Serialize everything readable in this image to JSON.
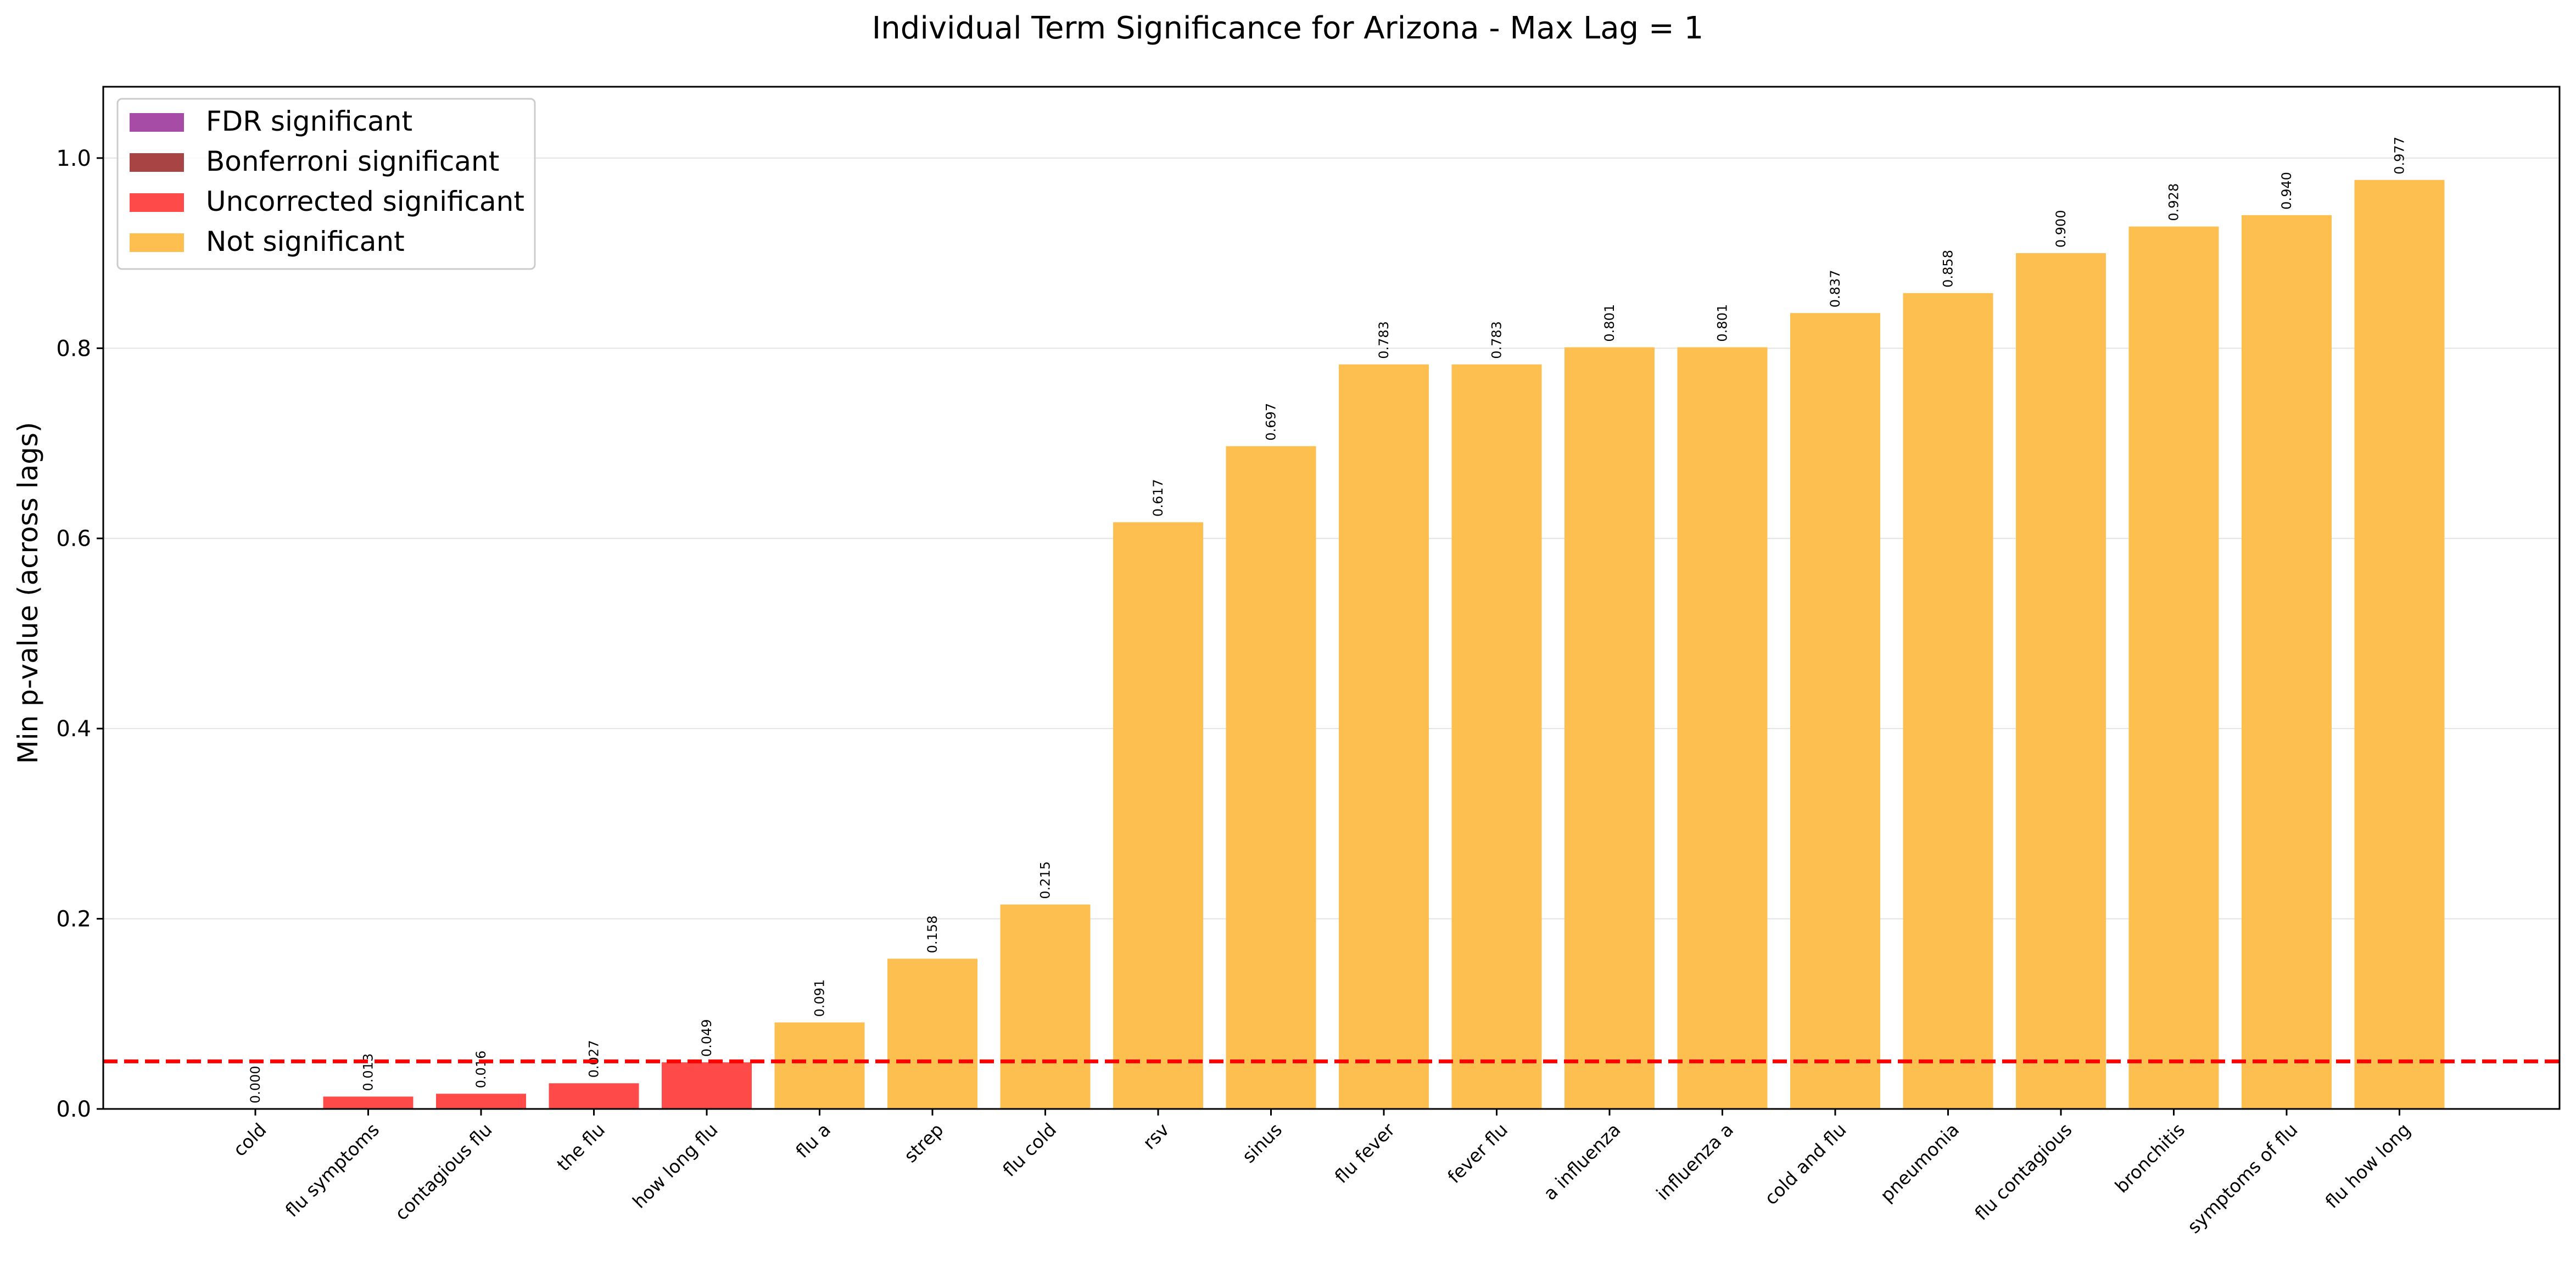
{
  "chart_data": {
    "type": "bar",
    "title": "Individual Term Significance for Arizona - Max Lag = 1",
    "xlabel": "",
    "ylabel": "Min p-value (across lags)",
    "ylim": [
      0,
      1.075
    ],
    "yticks": [
      "0.0",
      "0.2",
      "0.4",
      "0.6",
      "0.8",
      "1.0"
    ],
    "ytick_values": [
      0,
      0.2,
      0.4,
      0.6,
      0.8,
      1.0
    ],
    "grid": "y",
    "threshold": 0.05,
    "threshold_color": "#ff0000",
    "categories": [
      "cold",
      "flu symptoms",
      "contagious flu",
      "the flu",
      "how long flu",
      "flu a",
      "strep",
      "flu cold",
      "rsv",
      "sinus",
      "flu fever",
      "fever flu",
      "a influenza",
      "influenza a",
      "cold and flu",
      "pneumonia",
      "flu contagious",
      "bronchitis",
      "symptoms of flu",
      "flu how long"
    ],
    "values": [
      0.0,
      0.013,
      0.016,
      0.027,
      0.049,
      0.091,
      0.158,
      0.215,
      0.617,
      0.697,
      0.783,
      0.783,
      0.801,
      0.801,
      0.837,
      0.858,
      0.9,
      0.928,
      0.94,
      0.977
    ],
    "value_labels": [
      "0.000",
      "0.013",
      "0.016",
      "0.027",
      "0.049",
      "0.091",
      "0.158",
      "0.215",
      "0.617",
      "0.697",
      "0.783",
      "0.783",
      "0.801",
      "0.801",
      "0.837",
      "0.858",
      "0.900",
      "0.928",
      "0.940",
      "0.977"
    ],
    "bar_status": [
      "uncorrected",
      "uncorrected",
      "uncorrected",
      "uncorrected",
      "uncorrected",
      "not",
      "not",
      "not",
      "not",
      "not",
      "not",
      "not",
      "not",
      "not",
      "not",
      "not",
      "not",
      "not",
      "not",
      "not"
    ],
    "legend": {
      "position": "top-left",
      "entries": [
        {
          "key": "fdr",
          "label": "FDR significant",
          "color": "#a64ca6"
        },
        {
          "key": "bonferroni",
          "label": "Bonferroni significant",
          "color": "#a94444"
        },
        {
          "key": "uncorrected",
          "label": "Uncorrected significant",
          "color": "#ff4a4a"
        },
        {
          "key": "not",
          "label": "Not significant",
          "color": "#fdbf4f"
        }
      ]
    }
  }
}
